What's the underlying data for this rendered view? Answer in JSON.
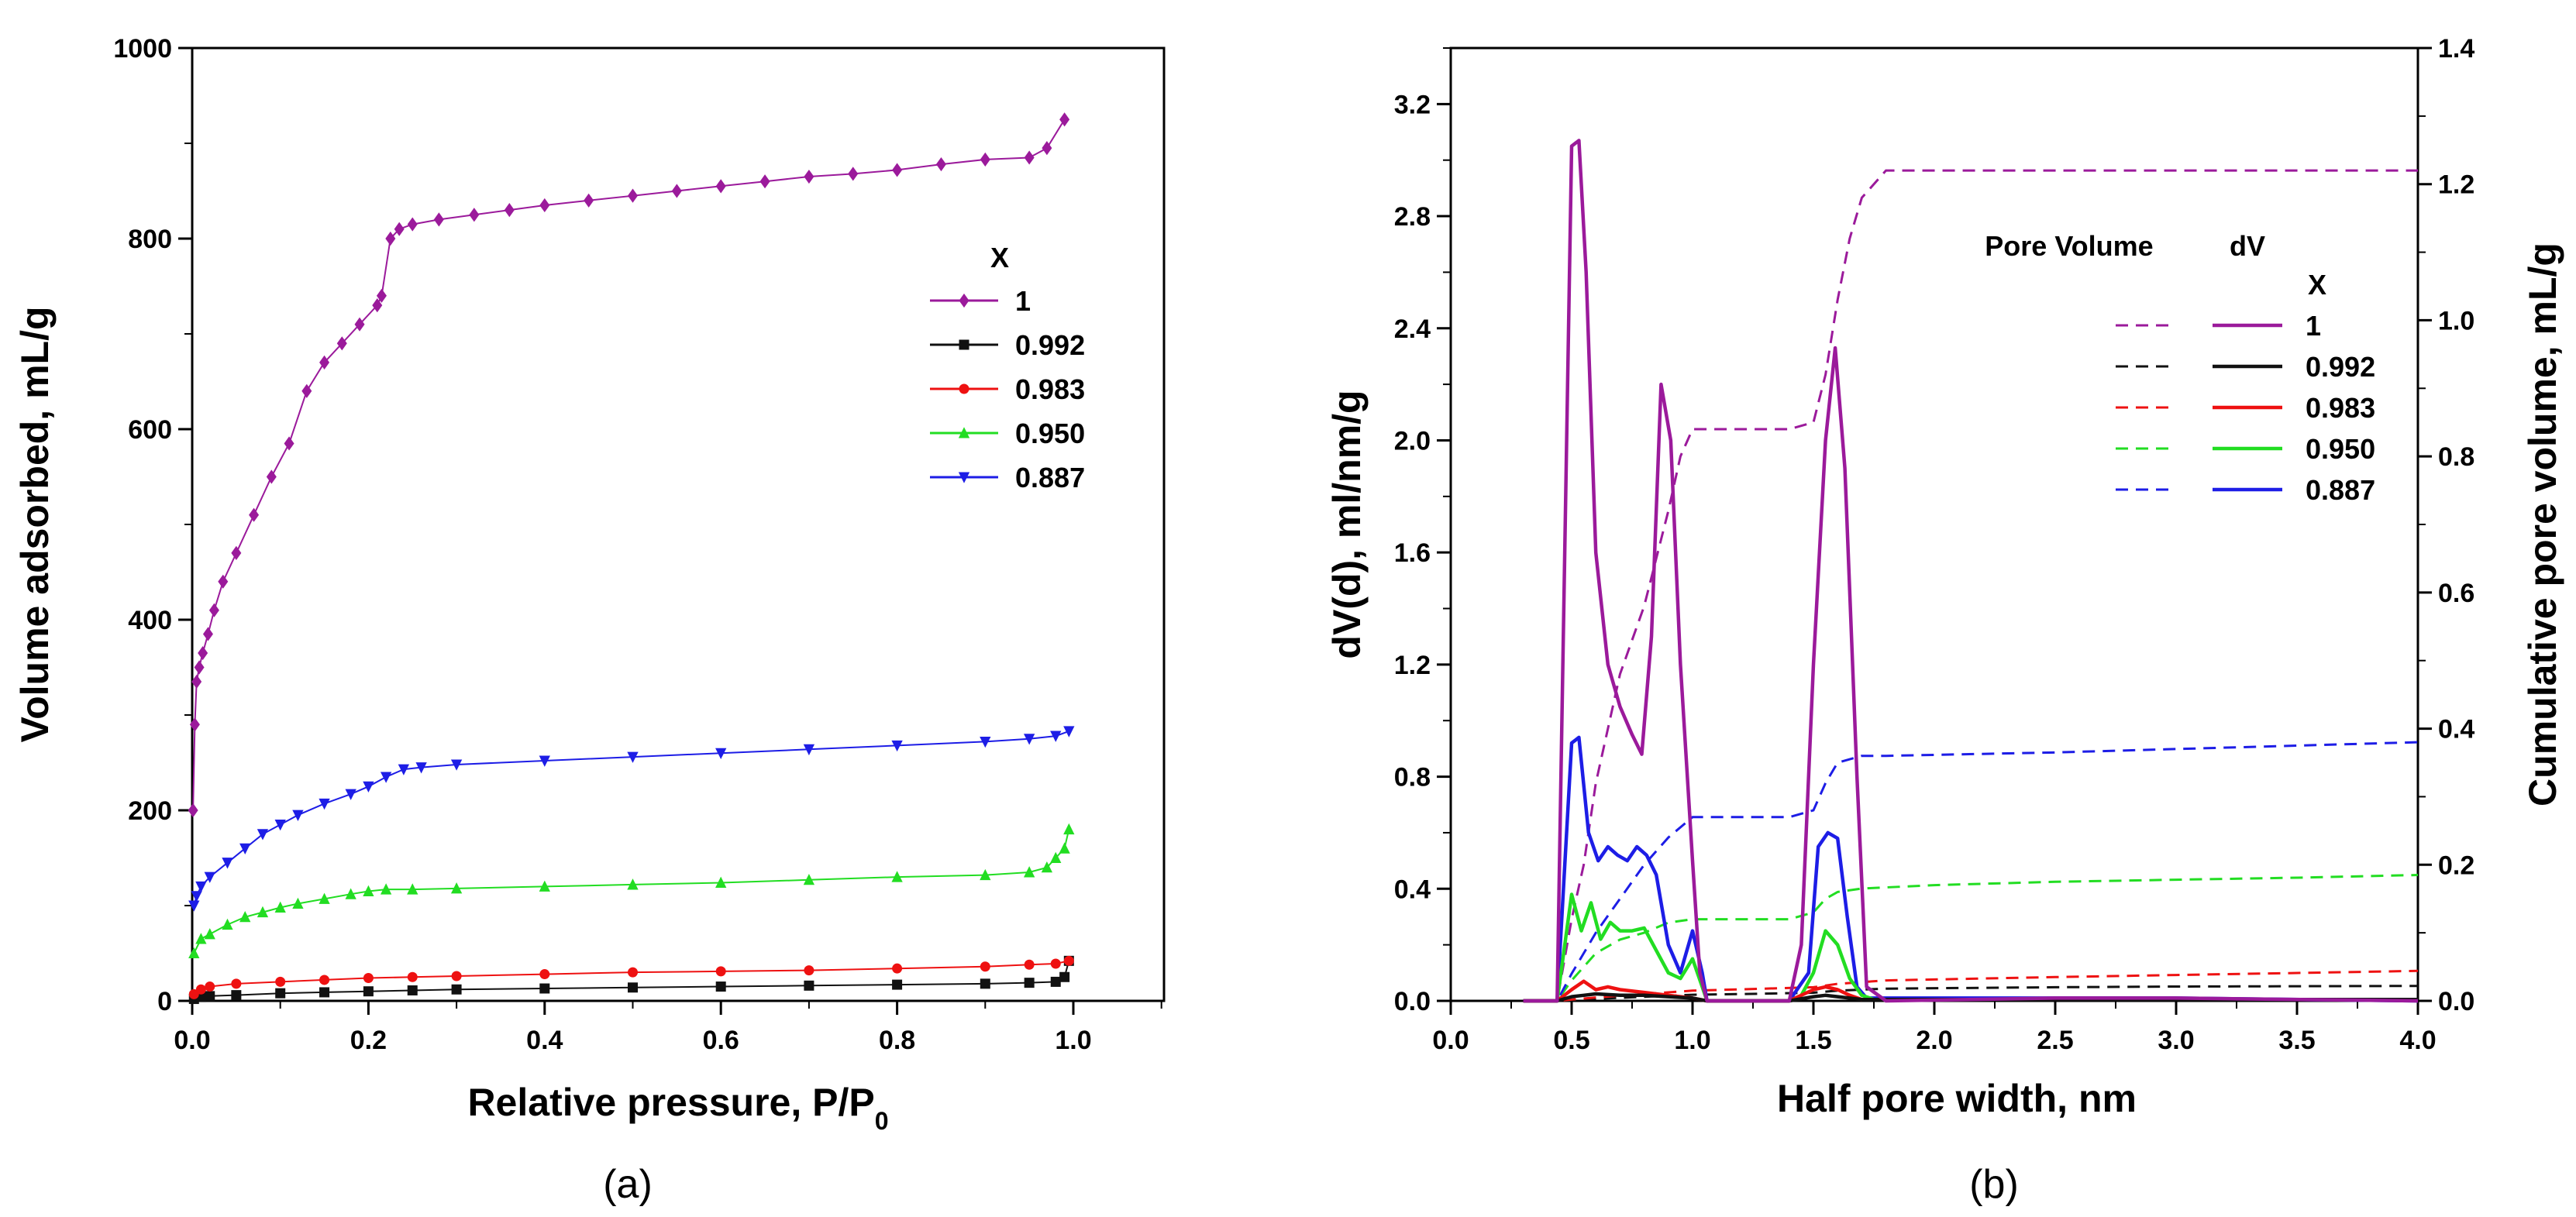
{
  "chart_data": [
    {
      "type": "line",
      "panel_label": "(a)",
      "xlabel_main": "Relative pressure, P/P",
      "xlabel_sub": "0",
      "ylabel": "Volume adsorbed, mL/g",
      "xlim": [
        0,
        1.1
      ],
      "ylim": [
        0,
        1000
      ],
      "xticks": [
        "0.0",
        "0.2",
        "0.4",
        "0.6",
        "0.8",
        "1.0"
      ],
      "yticks": [
        "0",
        "200",
        "400",
        "600",
        "800",
        "1000"
      ],
      "legend_title": "X",
      "series": [
        {
          "name": "1",
          "color": "#9b1a9b",
          "marker": "diamond",
          "x": [
            0.001,
            0.003,
            0.005,
            0.008,
            0.012,
            0.018,
            0.025,
            0.035,
            0.05,
            0.07,
            0.09,
            0.11,
            0.13,
            0.15,
            0.17,
            0.19,
            0.21,
            0.215,
            0.225,
            0.235,
            0.25,
            0.28,
            0.32,
            0.36,
            0.4,
            0.45,
            0.5,
            0.55,
            0.6,
            0.65,
            0.7,
            0.75,
            0.8,
            0.85,
            0.9,
            0.95,
            0.97,
            0.99
          ],
          "y": [
            200,
            290,
            335,
            350,
            365,
            385,
            410,
            440,
            470,
            510,
            550,
            585,
            640,
            670,
            690,
            710,
            730,
            740,
            800,
            810,
            815,
            820,
            825,
            830,
            835,
            840,
            845,
            850,
            855,
            860,
            865,
            868,
            872,
            878,
            883,
            885,
            895,
            925
          ]
        },
        {
          "name": "0.992",
          "color": "#111111",
          "marker": "square",
          "x": [
            0.002,
            0.01,
            0.02,
            0.05,
            0.1,
            0.15,
            0.2,
            0.25,
            0.3,
            0.4,
            0.5,
            0.6,
            0.7,
            0.8,
            0.9,
            0.95,
            0.98,
            0.99,
            0.995
          ],
          "y": [
            2,
            4,
            5,
            6,
            8,
            9,
            10,
            11,
            12,
            13,
            14,
            15,
            16,
            17,
            18,
            19,
            20,
            25,
            42
          ]
        },
        {
          "name": "0.983",
          "color": "#ee1111",
          "marker": "circle",
          "x": [
            0.002,
            0.01,
            0.02,
            0.05,
            0.1,
            0.15,
            0.2,
            0.25,
            0.3,
            0.4,
            0.5,
            0.6,
            0.7,
            0.8,
            0.9,
            0.95,
            0.98,
            0.995
          ],
          "y": [
            7,
            12,
            15,
            18,
            20,
            22,
            24,
            25,
            26,
            28,
            30,
            31,
            32,
            34,
            36,
            38,
            39,
            42
          ]
        },
        {
          "name": "0.950",
          "color": "#22dd22",
          "marker": "triangle-up",
          "x": [
            0.002,
            0.01,
            0.02,
            0.04,
            0.06,
            0.08,
            0.1,
            0.12,
            0.15,
            0.18,
            0.2,
            0.22,
            0.25,
            0.3,
            0.4,
            0.5,
            0.6,
            0.7,
            0.8,
            0.9,
            0.95,
            0.97,
            0.98,
            0.99,
            0.995
          ],
          "y": [
            50,
            65,
            70,
            80,
            88,
            93,
            98,
            102,
            107,
            112,
            115,
            117,
            117,
            118,
            120,
            122,
            124,
            127,
            130,
            132,
            135,
            140,
            150,
            160,
            180
          ]
        },
        {
          "name": "0.887",
          "color": "#1d1de6",
          "marker": "triangle-down",
          "x": [
            0.002,
            0.005,
            0.01,
            0.02,
            0.04,
            0.06,
            0.08,
            0.1,
            0.12,
            0.15,
            0.18,
            0.2,
            0.22,
            0.24,
            0.26,
            0.3,
            0.4,
            0.5,
            0.6,
            0.7,
            0.8,
            0.9,
            0.95,
            0.98,
            0.995
          ],
          "y": [
            100,
            110,
            120,
            130,
            145,
            160,
            175,
            185,
            195,
            207,
            217,
            225,
            235,
            243,
            245,
            248,
            252,
            256,
            260,
            264,
            268,
            272,
            275,
            278,
            283
          ]
        }
      ]
    },
    {
      "type": "line",
      "panel_label": "(b)",
      "xlabel": "Half pore width, nm",
      "ylabel_left": "dV(d), ml/nm/g",
      "ylabel_right": "Cumulative pore volume, mL/g",
      "xlim": [
        0,
        4.0
      ],
      "ylim_left": [
        0,
        3.4
      ],
      "ylim_right": [
        0,
        1.4
      ],
      "xticks": [
        "0.0",
        "0.5",
        "1.0",
        "1.5",
        "2.0",
        "2.5",
        "3.0",
        "3.5",
        "4.0"
      ],
      "yticks_left": [
        "0.0",
        "0.4",
        "0.8",
        "1.2",
        "1.6",
        "2.0",
        "2.4",
        "2.8",
        "3.2"
      ],
      "yticks_right": [
        "0.0",
        "0.2",
        "0.4",
        "0.6",
        "0.8",
        "1.0",
        "1.2",
        "1.4"
      ],
      "legend_head_left": "Pore Volume",
      "legend_head_right": "dV",
      "legend_title": "X",
      "series": [
        {
          "name": "1",
          "color": "#9b1a9b",
          "dV": {
            "x": [
              0.3,
              0.44,
              0.5,
              0.53,
              0.56,
              0.6,
              0.65,
              0.7,
              0.75,
              0.79,
              0.83,
              0.87,
              0.91,
              0.95,
              1.0,
              1.03,
              1.06,
              1.4,
              1.45,
              1.5,
              1.55,
              1.59,
              1.63,
              1.68,
              1.72,
              1.8,
              2.5,
              3.0,
              4.0
            ],
            "y": [
              0,
              0,
              3.05,
              3.07,
              2.6,
              1.6,
              1.2,
              1.05,
              0.95,
              0.88,
              1.3,
              2.2,
              2.0,
              1.2,
              0.5,
              0.1,
              0,
              0,
              0.2,
              1.2,
              2.0,
              2.33,
              1.9,
              0.8,
              0.05,
              0,
              0.01,
              0.01,
              0
            ]
          },
          "cum": {
            "x": [
              0.3,
              0.44,
              0.5,
              0.55,
              0.6,
              0.7,
              0.8,
              0.85,
              0.9,
              0.95,
              1.0,
              1.2,
              1.4,
              1.5,
              1.55,
              1.6,
              1.65,
              1.7,
              1.8,
              2.5,
              3.0,
              4.0
            ],
            "y": [
              0,
              0,
              0.12,
              0.2,
              0.32,
              0.48,
              0.58,
              0.65,
              0.72,
              0.8,
              0.84,
              0.84,
              0.84,
              0.85,
              0.92,
              1.03,
              1.12,
              1.18,
              1.22,
              1.22,
              1.22,
              1.22
            ]
          }
        },
        {
          "name": "0.992",
          "color": "#111111",
          "dV": {
            "x": [
              0.3,
              0.44,
              0.5,
              0.55,
              0.6,
              0.7,
              0.8,
              0.9,
              1.0,
              1.06,
              1.4,
              1.5,
              1.55,
              1.6,
              1.7,
              1.8,
              2.5,
              4.0
            ],
            "y": [
              0,
              0,
              0.015,
              0.02,
              0.025,
              0.02,
              0.02,
              0.015,
              0.01,
              0,
              0,
              0.015,
              0.02,
              0.015,
              0.005,
              0.005,
              0.005,
              0.005
            ]
          },
          "cum": {
            "x": [
              0.3,
              0.44,
              0.6,
              0.8,
              1.0,
              1.2,
              1.5,
              1.6,
              1.8,
              2.5,
              3.0,
              4.0
            ],
            "y": [
              0,
              0,
              0.003,
              0.006,
              0.009,
              0.01,
              0.012,
              0.015,
              0.018,
              0.02,
              0.021,
              0.022
            ]
          }
        },
        {
          "name": "0.983",
          "color": "#ee1111",
          "dV": {
            "x": [
              0.3,
              0.44,
              0.5,
              0.55,
              0.6,
              0.65,
              0.7,
              0.8,
              0.9,
              1.0,
              1.06,
              1.4,
              1.5,
              1.55,
              1.6,
              1.65,
              1.7,
              1.8,
              2.5,
              4.0
            ],
            "y": [
              0,
              0,
              0.04,
              0.07,
              0.04,
              0.05,
              0.04,
              0.03,
              0.02,
              0.01,
              0,
              0,
              0.04,
              0.05,
              0.04,
              0.02,
              0.005,
              0.005,
              0.005,
              0.005
            ]
          },
          "cum": {
            "x": [
              0.3,
              0.44,
              0.6,
              0.8,
              1.0,
              1.2,
              1.5,
              1.6,
              1.8,
              2.5,
              3.0,
              3.5,
              4.0
            ],
            "y": [
              0,
              0,
              0.005,
              0.01,
              0.015,
              0.017,
              0.02,
              0.025,
              0.03,
              0.035,
              0.038,
              0.041,
              0.044
            ]
          }
        },
        {
          "name": "0.950",
          "color": "#22dd22",
          "dV": {
            "x": [
              0.3,
              0.44,
              0.5,
              0.54,
              0.58,
              0.62,
              0.66,
              0.7,
              0.75,
              0.8,
              0.85,
              0.9,
              0.95,
              1.0,
              1.04,
              1.06,
              1.4,
              1.45,
              1.5,
              1.55,
              1.6,
              1.65,
              1.7,
              1.75,
              1.8,
              2.5,
              4.0
            ],
            "y": [
              0,
              0,
              0.38,
              0.25,
              0.35,
              0.22,
              0.28,
              0.25,
              0.25,
              0.26,
              0.18,
              0.1,
              0.08,
              0.15,
              0.05,
              0,
              0,
              0.02,
              0.1,
              0.25,
              0.2,
              0.08,
              0.02,
              0.005,
              0.005,
              0.005,
              0.005
            ]
          },
          "cum": {
            "x": [
              0.3,
              0.44,
              0.5,
              0.6,
              0.7,
              0.8,
              0.9,
              1.0,
              1.2,
              1.4,
              1.5,
              1.55,
              1.6,
              1.7,
              2.0,
              2.5,
              3.0,
              3.5,
              4.0
            ],
            "y": [
              0,
              0,
              0.03,
              0.07,
              0.09,
              0.1,
              0.115,
              0.12,
              0.12,
              0.12,
              0.13,
              0.15,
              0.16,
              0.165,
              0.17,
              0.175,
              0.178,
              0.181,
              0.185
            ]
          }
        },
        {
          "name": "0.887",
          "color": "#1d1de6",
          "dV": {
            "x": [
              0.3,
              0.44,
              0.5,
              0.53,
              0.57,
              0.61,
              0.65,
              0.69,
              0.73,
              0.77,
              0.81,
              0.85,
              0.9,
              0.95,
              1.0,
              1.04,
              1.06,
              1.4,
              1.48,
              1.52,
              1.56,
              1.6,
              1.64,
              1.68,
              1.72,
              1.8,
              2.5,
              3.0,
              4.0
            ],
            "y": [
              0,
              0,
              0.92,
              0.94,
              0.6,
              0.5,
              0.55,
              0.52,
              0.5,
              0.55,
              0.52,
              0.45,
              0.2,
              0.1,
              0.25,
              0.1,
              0,
              0,
              0.1,
              0.55,
              0.6,
              0.58,
              0.3,
              0.05,
              0.01,
              0.01,
              0.01,
              0.01,
              0
            ]
          },
          "cum": {
            "x": [
              0.3,
              0.44,
              0.5,
              0.55,
              0.6,
              0.7,
              0.8,
              0.9,
              1.0,
              1.2,
              1.4,
              1.5,
              1.55,
              1.6,
              1.7,
              1.8,
              2.5,
              3.0,
              3.5,
              4.0
            ],
            "y": [
              0,
              0,
              0.04,
              0.07,
              0.1,
              0.15,
              0.2,
              0.24,
              0.27,
              0.27,
              0.27,
              0.28,
              0.32,
              0.35,
              0.36,
              0.36,
              0.365,
              0.37,
              0.375,
              0.38
            ]
          }
        }
      ]
    }
  ]
}
